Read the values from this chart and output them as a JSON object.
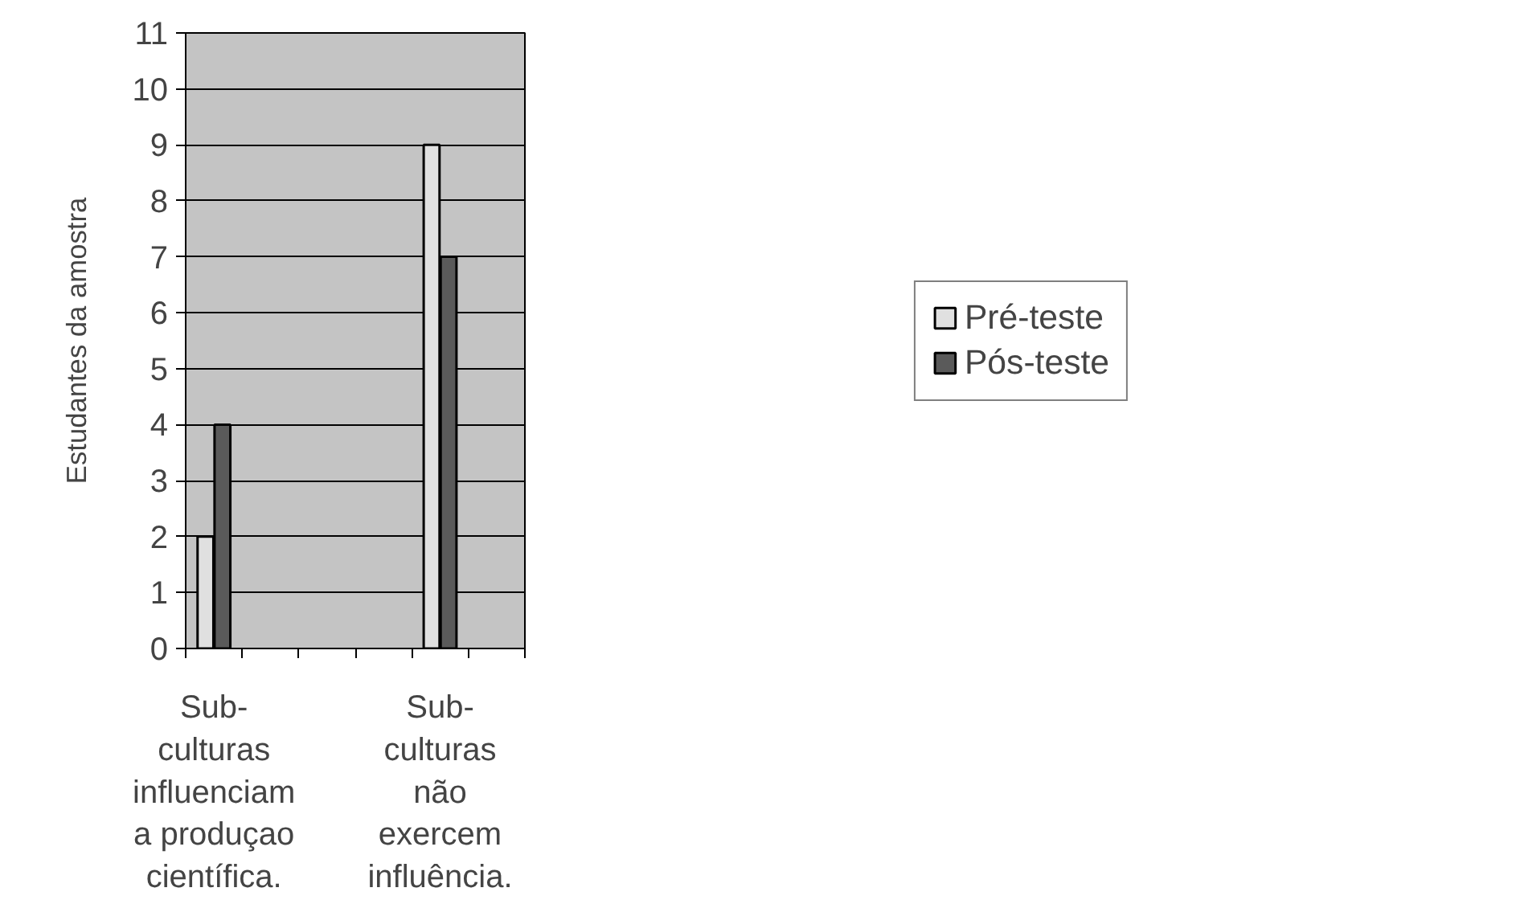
{
  "chart_data": {
    "type": "bar",
    "ylabel": "Estudantes da amostra",
    "categories": [
      "Sub-\nculturas\ninfluenciam\na produçao\ncientífica.",
      null,
      null,
      null,
      "Sub-\nculturas\nnão\nexercem\ninfluência.",
      null
    ],
    "series": [
      {
        "name": "Pré-teste",
        "color": "#e0e0e0",
        "values": [
          2,
          null,
          null,
          null,
          9,
          null
        ]
      },
      {
        "name": "Pós-teste",
        "color": "#5a5a5a",
        "values": [
          4,
          null,
          null,
          null,
          7,
          null
        ]
      }
    ],
    "ylim": [
      0,
      11
    ],
    "yticks": [
      0,
      1,
      2,
      3,
      4,
      5,
      6,
      7,
      8,
      9,
      10,
      11
    ],
    "grid": "y",
    "legend": "right"
  }
}
